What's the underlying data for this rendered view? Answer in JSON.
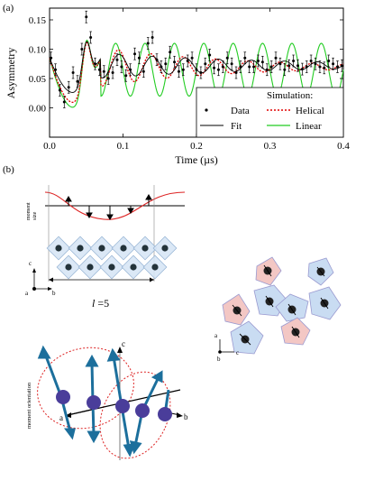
{
  "panel_a": {
    "label": "(a)"
  },
  "panel_b": {
    "label": "(b)"
  },
  "chart_data": {
    "type": "scatter",
    "xlabel": "Time (µs)",
    "ylabel": "Asymmetry",
    "xlim": [
      0.0,
      0.4
    ],
    "ylim": [
      -0.05,
      0.17
    ],
    "xticks": [
      "0.0",
      "0.1",
      "0.2",
      "0.3",
      "0.4"
    ],
    "yticks": [
      "0.00",
      "0.05",
      "0.10",
      "0.15"
    ],
    "legend_position": "bottom-right",
    "legend": {
      "data": "Data",
      "fit": "Fit",
      "simulation_title": "Simulation:",
      "helical": "Helical",
      "linear": "Linear"
    },
    "colors": {
      "data": "#000000",
      "fit": "#000000",
      "helical": "#e00000",
      "linear": "#22cc22"
    },
    "data_x": [
      0.002,
      0.008,
      0.014,
      0.02,
      0.026,
      0.032,
      0.038,
      0.044,
      0.05,
      0.056,
      0.062,
      0.068,
      0.074,
      0.08,
      0.086,
      0.092,
      0.098,
      0.104,
      0.11,
      0.116,
      0.122,
      0.128,
      0.134,
      0.14,
      0.146,
      0.152,
      0.158,
      0.164,
      0.17,
      0.176,
      0.182,
      0.188,
      0.194,
      0.2,
      0.206,
      0.212,
      0.218,
      0.224,
      0.23,
      0.236,
      0.242,
      0.248,
      0.254,
      0.26,
      0.266,
      0.272,
      0.278,
      0.284,
      0.29,
      0.296,
      0.302,
      0.308,
      0.314,
      0.32,
      0.326,
      0.332,
      0.338,
      0.344,
      0.35,
      0.356,
      0.362,
      0.368,
      0.374,
      0.38,
      0.386,
      0.392,
      0.398
    ],
    "data_y": [
      0.085,
      0.065,
      0.03,
      0.01,
      0.035,
      0.06,
      0.045,
      0.1,
      0.155,
      0.12,
      0.075,
      0.065,
      0.062,
      0.05,
      0.06,
      0.082,
      0.07,
      0.055,
      0.065,
      0.092,
      0.085,
      0.062,
      0.11,
      0.12,
      0.082,
      0.07,
      0.075,
      0.095,
      0.078,
      0.062,
      0.065,
      0.08,
      0.085,
      0.065,
      0.06,
      0.075,
      0.09,
      0.068,
      0.065,
      0.07,
      0.085,
      0.075,
      0.06,
      0.07,
      0.085,
      0.07,
      0.07,
      0.08,
      0.078,
      0.065,
      0.07,
      0.085,
      0.075,
      0.065,
      0.072,
      0.08,
      0.072,
      0.066,
      0.07,
      0.08,
      0.075,
      0.07,
      0.068,
      0.08,
      0.075,
      0.07,
      0.072
    ],
    "data_err": 0.01
  },
  "figure_b": {
    "moment_size_label": "moment\nsize",
    "moment_orientation_label": "moment orientation",
    "period_label_italic": "l",
    "period_label_value": " =5",
    "axis_c": "c",
    "axis_a": "a",
    "axis_b": "b"
  }
}
